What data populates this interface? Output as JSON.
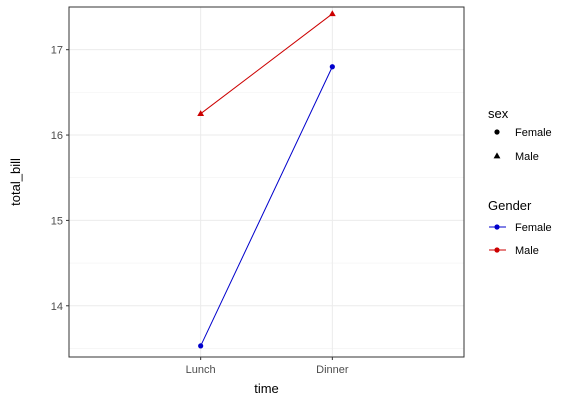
{
  "chart_data": {
    "type": "line",
    "title": "",
    "xlabel": "time",
    "ylabel": "total_bill",
    "categories": [
      "Lunch",
      "Dinner"
    ],
    "ylim": [
      13.4,
      17.5
    ],
    "yticks": [
      14,
      15,
      16,
      17
    ],
    "grid": true,
    "legend_position": "right",
    "series": [
      {
        "name": "Female",
        "shape": "circle",
        "values": [
          13.53,
          16.8
        ],
        "color": "#0000cc"
      },
      {
        "name": "Male",
        "shape": "triangle",
        "values": [
          16.25,
          17.42
        ],
        "color": "#cc0000"
      }
    ],
    "legends": [
      {
        "title": "sex",
        "entries": [
          {
            "label": "Female",
            "shape": "circle"
          },
          {
            "label": "Male",
            "shape": "triangle"
          }
        ]
      },
      {
        "title": "Gender",
        "entries": [
          {
            "label": "Female",
            "color": "#0000cc"
          },
          {
            "label": "Male",
            "color": "#cc0000"
          }
        ]
      }
    ]
  }
}
